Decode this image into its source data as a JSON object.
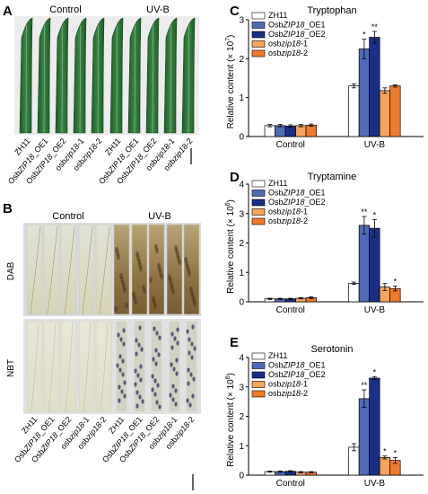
{
  "panels": {
    "A": {
      "label": "A",
      "group_labels": [
        "Control",
        "UV-B"
      ]
    },
    "B": {
      "label": "B",
      "group_labels": [
        "Control",
        "UV-B"
      ],
      "row_labels": [
        "DAB",
        "NBT"
      ]
    }
  },
  "sample_labels": [
    "ZH11",
    "OsbZIP18_OE1",
    "OsbZIP18_OE2",
    "osbzip18-1",
    "osbzip18-2",
    "ZH11",
    "OsbZIP18_OE1",
    "OsbZIP18_OE2",
    "osbzip18-1",
    "osbzip18-2"
  ],
  "colors": {
    "ZH11": "#ffffff",
    "OsbZIP18_OE1": "#4f6bb8",
    "OsbZIP18_OE2": "#1a2f86",
    "osbzip18-1": "#f6a55f",
    "osbzip18-2": "#f07a2c",
    "leaf_green": "#2f7d3a",
    "leaf_dark": "#1f5a29"
  },
  "chart_data": [
    {
      "panel_label": "C",
      "type": "bar",
      "title": "Tryptophan",
      "ylabel": "Relative content (× 10",
      "ylabel_exp": "7",
      "categories": [
        "Control",
        "UV-B"
      ],
      "ylim": [
        0,
        3
      ],
      "yticks": [
        "0",
        "1",
        "2",
        "3"
      ],
      "series": [
        {
          "name": "ZH11",
          "values": [
            0.28,
            1.3
          ],
          "err": [
            0.03,
            0.05
          ],
          "stars": [
            "",
            ""
          ]
        },
        {
          "name": "OsbZIP18_OE1",
          "values": [
            0.28,
            2.25
          ],
          "err": [
            0.03,
            0.25
          ],
          "stars": [
            "",
            "*"
          ]
        },
        {
          "name": "OsbZIP18_OE2",
          "values": [
            0.27,
            2.55
          ],
          "err": [
            0.03,
            0.15
          ],
          "stars": [
            "",
            "**"
          ]
        },
        {
          "name": "osbzip18-1",
          "values": [
            0.28,
            1.18
          ],
          "err": [
            0.03,
            0.07
          ],
          "stars": [
            "",
            ""
          ]
        },
        {
          "name": "osbzip18-2",
          "values": [
            0.29,
            1.3
          ],
          "err": [
            0.03,
            0.03
          ],
          "stars": [
            "",
            ""
          ]
        }
      ]
    },
    {
      "panel_label": "D",
      "type": "bar",
      "title": "Tryptamine",
      "ylabel": "Relative content (× 10",
      "ylabel_exp": "6",
      "categories": [
        "Control",
        "UV-B"
      ],
      "ylim": [
        0,
        4
      ],
      "yticks": [
        "0",
        "1",
        "2",
        "3",
        "4"
      ],
      "series": [
        {
          "name": "ZH11",
          "values": [
            0.1,
            0.63
          ],
          "err": [
            0.02,
            0.04
          ],
          "stars": [
            "",
            ""
          ]
        },
        {
          "name": "OsbZIP18_OE1",
          "values": [
            0.1,
            2.6
          ],
          "err": [
            0.02,
            0.3
          ],
          "stars": [
            "",
            "**"
          ]
        },
        {
          "name": "OsbZIP18_OE2",
          "values": [
            0.1,
            2.5
          ],
          "err": [
            0.02,
            0.3
          ],
          "stars": [
            "",
            "*"
          ]
        },
        {
          "name": "osbzip18-1",
          "values": [
            0.12,
            0.5
          ],
          "err": [
            0.02,
            0.12
          ],
          "stars": [
            "",
            ""
          ]
        },
        {
          "name": "osbzip18-2",
          "values": [
            0.14,
            0.45
          ],
          "err": [
            0.03,
            0.08
          ],
          "stars": [
            "",
            "*"
          ]
        }
      ]
    },
    {
      "panel_label": "E",
      "type": "bar",
      "title": "Serotonin",
      "ylabel": "Relative content (× 10",
      "ylabel_exp": "6",
      "categories": [
        "Control",
        "UV-B"
      ],
      "ylim": [
        0,
        4
      ],
      "yticks": [
        "0",
        "1",
        "2",
        "3",
        "4"
      ],
      "series": [
        {
          "name": "ZH11",
          "values": [
            0.12,
            0.95
          ],
          "err": [
            0.02,
            0.12
          ],
          "stars": [
            "",
            ""
          ]
        },
        {
          "name": "OsbZIP18_OE1",
          "values": [
            0.12,
            2.6
          ],
          "err": [
            0.02,
            0.3
          ],
          "stars": [
            "",
            "**"
          ]
        },
        {
          "name": "OsbZIP18_OE2",
          "values": [
            0.13,
            3.3
          ],
          "err": [
            0.02,
            0.05
          ],
          "stars": [
            "",
            "*"
          ]
        },
        {
          "name": "osbzip18-1",
          "values": [
            0.1,
            0.6
          ],
          "err": [
            0.02,
            0.05
          ],
          "stars": [
            "",
            "*"
          ]
        },
        {
          "name": "osbzip18-2",
          "values": [
            0.1,
            0.5
          ],
          "err": [
            0.02,
            0.1
          ],
          "stars": [
            "",
            "*"
          ]
        }
      ]
    }
  ]
}
